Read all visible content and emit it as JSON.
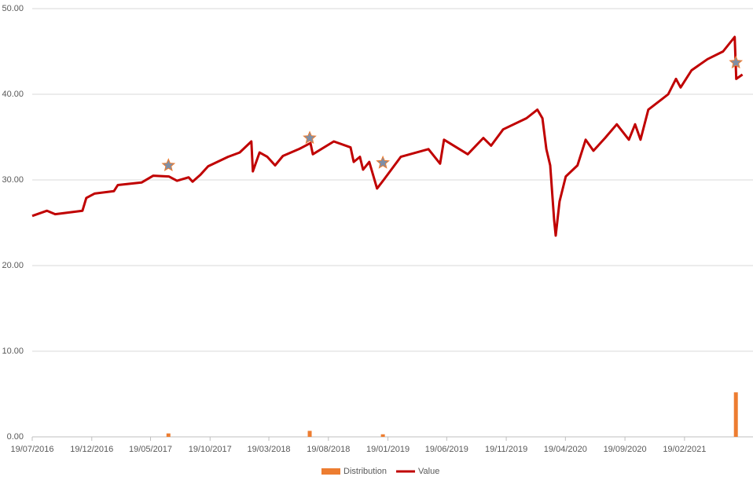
{
  "chart_data": {
    "type": "line",
    "xticks": [
      {
        "value": "2016-07-19",
        "label": "19/07/2016"
      },
      {
        "value": "2016-12-19",
        "label": "19/12/2016"
      },
      {
        "value": "2017-05-19",
        "label": "19/05/2017"
      },
      {
        "value": "2017-10-19",
        "label": "19/10/2017"
      },
      {
        "value": "2018-03-19",
        "label": "19/03/2018"
      },
      {
        "value": "2018-08-19",
        "label": "19/08/2018"
      },
      {
        "value": "2019-01-19",
        "label": "19/01/2019"
      },
      {
        "value": "2019-06-19",
        "label": "19/06/2019"
      },
      {
        "value": "2019-11-19",
        "label": "19/11/2019"
      },
      {
        "value": "2020-04-19",
        "label": "19/04/2020"
      },
      {
        "value": "2020-09-19",
        "label": "19/09/2020"
      },
      {
        "value": "2021-02-19",
        "label": "19/02/2021"
      }
    ],
    "xlim": [
      "2016-07-19",
      "2021-08-14"
    ],
    "ylim": [
      0,
      50
    ],
    "yticks": [
      {
        "value": 0,
        "label": "0.00"
      },
      {
        "value": 10,
        "label": "10.00"
      },
      {
        "value": 20,
        "label": "20.00"
      },
      {
        "value": 30,
        "label": "30.00"
      },
      {
        "value": 40,
        "label": "40.00"
      },
      {
        "value": 50,
        "label": "50.00"
      }
    ],
    "grid": true,
    "legend": "bottom",
    "series": [
      {
        "name": "Distribution",
        "type": "bar",
        "color": "#ed7d31",
        "star_color": "#7f8fa6",
        "x": [
          "2017-07-04",
          "2018-07-02",
          "2019-01-06",
          "2021-07-01"
        ],
        "values": [
          0.4,
          0.7,
          0.3,
          5.2
        ],
        "star_values": [
          31.7,
          34.9,
          32.0,
          43.7
        ]
      },
      {
        "name": "Value",
        "type": "line",
        "color": "#c00000",
        "x": [
          "2016-07-19",
          "2016-08-26",
          "2016-09-16",
          "2016-11-25",
          "2016-12-05",
          "2016-12-26",
          "2017-02-14",
          "2017-02-24",
          "2017-04-26",
          "2017-05-26",
          "2017-07-05",
          "2017-07-26",
          "2017-08-25",
          "2017-09-04",
          "2017-09-24",
          "2017-10-14",
          "2017-12-04",
          "2018-01-03",
          "2018-02-02",
          "2018-02-06",
          "2018-02-23",
          "2018-03-15",
          "2018-04-04",
          "2018-04-24",
          "2018-06-04",
          "2018-07-04",
          "2018-07-10",
          "2018-09-02",
          "2018-10-15",
          "2018-10-23",
          "2018-11-08",
          "2018-11-16",
          "2018-12-02",
          "2018-12-22",
          "2019-01-08",
          "2019-02-21",
          "2019-05-03",
          "2019-06-02",
          "2019-06-12",
          "2019-08-12",
          "2019-09-21",
          "2019-10-11",
          "2019-11-11",
          "2020-01-10",
          "2020-02-07",
          "2020-02-20",
          "2020-03-01",
          "2020-03-11",
          "2020-03-21",
          "2020-03-25",
          "2020-04-04",
          "2020-04-20",
          "2020-05-20",
          "2020-06-10",
          "2020-06-30",
          "2020-07-30",
          "2020-08-29",
          "2020-09-29",
          "2020-10-15",
          "2020-10-29",
          "2020-11-18",
          "2021-01-08",
          "2021-01-28",
          "2021-02-09",
          "2021-03-09",
          "2021-04-19",
          "2021-05-29",
          "2021-06-28",
          "2021-07-02",
          "2021-07-18"
        ],
        "values": [
          25.8,
          26.4,
          26.0,
          26.4,
          27.9,
          28.4,
          28.7,
          29.4,
          29.7,
          30.5,
          30.4,
          29.9,
          30.3,
          29.8,
          30.6,
          31.6,
          32.7,
          33.2,
          34.5,
          31.0,
          33.2,
          32.7,
          31.7,
          32.8,
          33.6,
          34.3,
          33.0,
          34.5,
          33.8,
          32.1,
          32.7,
          31.2,
          32.1,
          29.0,
          30.0,
          32.7,
          33.6,
          31.9,
          34.7,
          33.0,
          34.9,
          34.0,
          35.9,
          37.2,
          38.2,
          37.2,
          33.6,
          31.7,
          25.3,
          23.5,
          27.5,
          30.4,
          31.7,
          34.7,
          33.4,
          34.9,
          36.5,
          34.7,
          36.5,
          34.7,
          38.2,
          40.0,
          41.8,
          40.8,
          42.8,
          44.1,
          45.0,
          46.7,
          41.8,
          42.3
        ]
      }
    ]
  }
}
